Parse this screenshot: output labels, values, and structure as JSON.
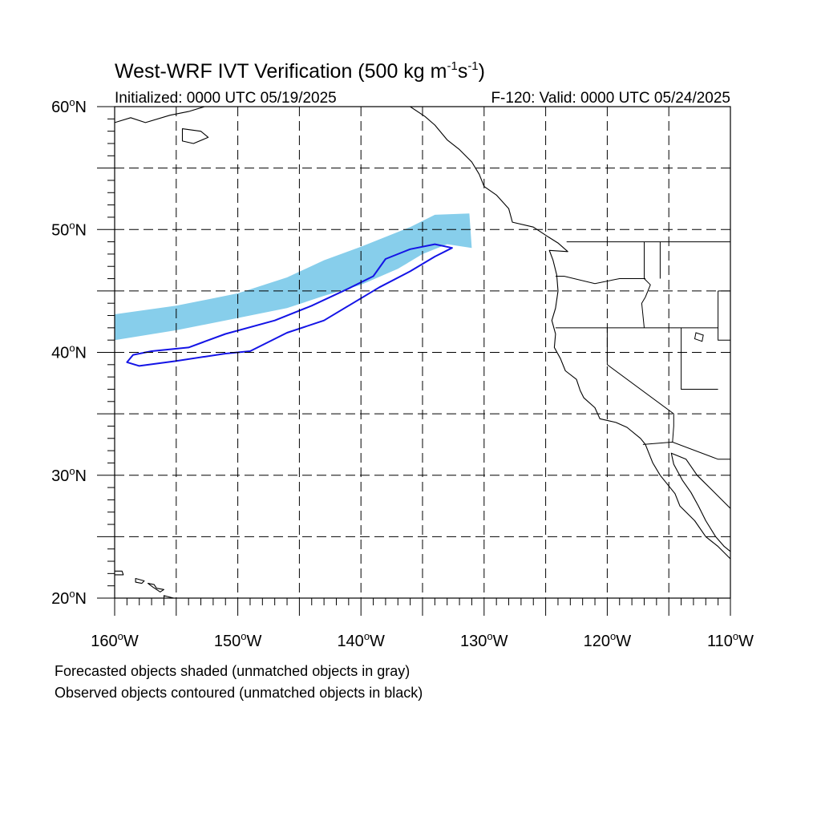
{
  "title": {
    "main": "West-WRF IVT Verification (500 kg m",
    "sup1": "-1",
    "mid": "s",
    "sup2": "-1",
    "end": ")"
  },
  "initialized": "Initialized: 0000 UTC 05/19/2025",
  "valid": "F-120: Valid: 0000 UTC 05/24/2025",
  "lat_labels": [
    {
      "deg": "60",
      "suffix": "N",
      "value": 60
    },
    {
      "deg": "50",
      "suffix": "N",
      "value": 50
    },
    {
      "deg": "40",
      "suffix": "N",
      "value": 40
    },
    {
      "deg": "30",
      "suffix": "N",
      "value": 30
    },
    {
      "deg": "20",
      "suffix": "N",
      "value": 20
    }
  ],
  "lon_labels": [
    {
      "deg": "160",
      "suffix": "W",
      "value": -160
    },
    {
      "deg": "150",
      "suffix": "W",
      "value": -150
    },
    {
      "deg": "140",
      "suffix": "W",
      "value": -140
    },
    {
      "deg": "130",
      "suffix": "W",
      "value": -130
    },
    {
      "deg": "120",
      "suffix": "W",
      "value": -120
    },
    {
      "deg": "110",
      "suffix": "W",
      "value": -110
    }
  ],
  "extent": {
    "lon": [
      -160,
      -110
    ],
    "lat": [
      20,
      60
    ]
  },
  "grid_spacing_deg": 5,
  "captions": {
    "line1": "Forecasted objects shaded (unmatched objects in gray)",
    "line2": "Observed objects contoured (unmatched objects in black)"
  },
  "colors": {
    "forecast_fill": "#87ceeb",
    "observed_contour": "#1414e6",
    "map_lines": "#000000"
  },
  "forecast_object": [
    [
      -160,
      41
    ],
    [
      -155,
      41.8
    ],
    [
      -150,
      42.8
    ],
    [
      -146,
      43.6
    ],
    [
      -143,
      44.6
    ],
    [
      -140,
      45.5
    ],
    [
      -137,
      46.8
    ],
    [
      -135,
      48.0
    ],
    [
      -133,
      48.8
    ],
    [
      -131,
      48.5
    ],
    [
      -131.2,
      51.3
    ],
    [
      -134,
      51.2
    ],
    [
      -136,
      50.2
    ],
    [
      -140,
      48.6
    ],
    [
      -143,
      47.5
    ],
    [
      -146,
      46.1
    ],
    [
      -150,
      44.8
    ],
    [
      -155,
      43.8
    ],
    [
      -160,
      43.1
    ]
  ],
  "observed_object": [
    [
      -158.5,
      39.8
    ],
    [
      -157,
      40.1
    ],
    [
      -154,
      40.4
    ],
    [
      -151,
      41.5
    ],
    [
      -147,
      42.6
    ],
    [
      -144,
      43.8
    ],
    [
      -141,
      45.2
    ],
    [
      -139,
      46.2
    ],
    [
      -138,
      47.6
    ],
    [
      -136,
      48.4
    ],
    [
      -134,
      48.8
    ],
    [
      -132.6,
      48.5
    ],
    [
      -134,
      47.8
    ],
    [
      -136,
      46.6
    ],
    [
      -138.5,
      45.3
    ],
    [
      -141,
      43.8
    ],
    [
      -143,
      42.6
    ],
    [
      -146,
      41.6
    ],
    [
      -149,
      40.1
    ],
    [
      -151,
      39.9
    ],
    [
      -155,
      39.3
    ],
    [
      -158,
      38.9
    ],
    [
      -159,
      39.2
    ]
  ],
  "coast_na": [
    [
      -136,
      60
    ],
    [
      -134.8,
      59.2
    ],
    [
      -134,
      58.5
    ],
    [
      -133,
      57.3
    ],
    [
      -132,
      56.5
    ],
    [
      -131,
      55.5
    ],
    [
      -130.4,
      54.5
    ],
    [
      -130,
      53.5
    ],
    [
      -129,
      52.8
    ],
    [
      -128,
      51.7
    ],
    [
      -127.7,
      50.6
    ],
    [
      -126,
      50.2
    ],
    [
      -124.8,
      49.4
    ],
    [
      -124,
      48.9
    ],
    [
      -123.2,
      48.2
    ],
    [
      -124.7,
      48.3
    ],
    [
      -124.4,
      47.5
    ],
    [
      -124.1,
      46.3
    ],
    [
      -124,
      45
    ],
    [
      -124.2,
      43.6
    ],
    [
      -124.5,
      42.6
    ],
    [
      -124.2,
      41.5
    ],
    [
      -124.3,
      40.4
    ],
    [
      -123.8,
      39.5
    ],
    [
      -123.4,
      38.5
    ],
    [
      -122.5,
      37.8
    ],
    [
      -122.2,
      36.9
    ],
    [
      -121.9,
      36.3
    ],
    [
      -121,
      35.5
    ],
    [
      -120.6,
      34.6
    ],
    [
      -119.3,
      34.3
    ],
    [
      -118.4,
      33.9
    ],
    [
      -117.3,
      33
    ],
    [
      -116.9,
      32.5
    ],
    [
      -116.3,
      31
    ],
    [
      -115.7,
      30
    ],
    [
      -114.5,
      28.5
    ],
    [
      -114.1,
      27.5
    ],
    [
      -112.9,
      26.3
    ],
    [
      -112,
      25
    ],
    [
      -111,
      24.2
    ],
    [
      -110,
      23.2
    ]
  ],
  "coast_gulf": [
    [
      -110,
      27.3
    ],
    [
      -111.5,
      28.8
    ],
    [
      -112.7,
      30
    ],
    [
      -113.6,
      31.3
    ],
    [
      -114.8,
      31.8
    ],
    [
      -114.6,
      30.9
    ],
    [
      -113.9,
      29.6
    ],
    [
      -113.2,
      28.6
    ],
    [
      -112.6,
      27.5
    ],
    [
      -112,
      26.3
    ],
    [
      -111.2,
      25
    ],
    [
      -110.5,
      24.2
    ],
    [
      -110,
      23.8
    ]
  ],
  "coast_alaska": [
    [
      -160,
      58.7
    ],
    [
      -158.7,
      59.1
    ],
    [
      -157.5,
      58.7
    ],
    [
      -155.5,
      59.3
    ],
    [
      -154,
      59.6
    ],
    [
      -152.7,
      60
    ]
  ],
  "coast_kodiak": [
    [
      -154.5,
      58.2
    ],
    [
      -153,
      58.0
    ],
    [
      -152.4,
      57.5
    ],
    [
      -153.6,
      57.0
    ],
    [
      -154.5,
      57.2
    ],
    [
      -154.5,
      58.2
    ]
  ],
  "coast_hawaii": [
    [
      [
        -160.2,
        22.2
      ],
      [
        -159.4,
        22.2
      ],
      [
        -159.3,
        21.9
      ],
      [
        -160.1,
        21.9
      ]
    ],
    [
      [
        -158.3,
        21.6
      ],
      [
        -157.6,
        21.4
      ],
      [
        -157.8,
        21.2
      ],
      [
        -158.3,
        21.3
      ]
    ],
    [
      [
        -157.3,
        21.2
      ],
      [
        -156.8,
        21.1
      ],
      [
        -156.6,
        20.8
      ],
      [
        -156.0,
        20.7
      ],
      [
        -156.3,
        20.5
      ],
      [
        -156.9,
        20.9
      ]
    ],
    [
      [
        -156.0,
        20.2
      ],
      [
        -155.2,
        20.0
      ],
      [
        -154.8,
        19.5
      ],
      [
        -155.5,
        18.9
      ],
      [
        -155.9,
        19.2
      ]
    ]
  ],
  "borders": [
    [
      [
        -123.3,
        49.0
      ],
      [
        -110,
        49.0
      ]
    ],
    [
      [
        -117.0,
        49.0
      ],
      [
        -117.0,
        46.0
      ],
      [
        -116.5,
        45.5
      ],
      [
        -116.9,
        44.5
      ],
      [
        -117.2,
        44.0
      ],
      [
        -117.0,
        42.0
      ]
    ],
    [
      [
        -124.2,
        46.2
      ],
      [
        -123.5,
        46.2
      ],
      [
        -121,
        45.6
      ],
      [
        -119,
        46.0
      ],
      [
        -116.9,
        46.0
      ]
    ],
    [
      [
        -124.2,
        42.0
      ],
      [
        -111,
        42.0
      ]
    ],
    [
      [
        -120.0,
        42.0
      ],
      [
        -120.0,
        39.0
      ],
      [
        -114.6,
        35.0
      ],
      [
        -114.6,
        34.0
      ],
      [
        -114.7,
        32.7
      ]
    ],
    [
      [
        -114.0,
        42.0
      ],
      [
        -114.0,
        37.0
      ],
      [
        -111,
        37.0
      ]
    ],
    [
      [
        -115.7,
        49.0
      ],
      [
        -115.7,
        46.0
      ]
    ],
    [
      [
        -111.0,
        45.0
      ],
      [
        -110,
        45.0
      ]
    ],
    [
      [
        -111.0,
        45.0
      ],
      [
        -111.0,
        41.0
      ],
      [
        -110,
        41.0
      ]
    ],
    [
      [
        -117.1,
        32.5
      ],
      [
        -114.7,
        32.7
      ],
      [
        -111,
        31.3
      ],
      [
        -110,
        31.3
      ]
    ]
  ],
  "lakes": [
    [
      [
        -112.8,
        41.6
      ],
      [
        -112.2,
        41.4
      ],
      [
        -112.3,
        40.9
      ],
      [
        -112.9,
        41.1
      ]
    ]
  ]
}
